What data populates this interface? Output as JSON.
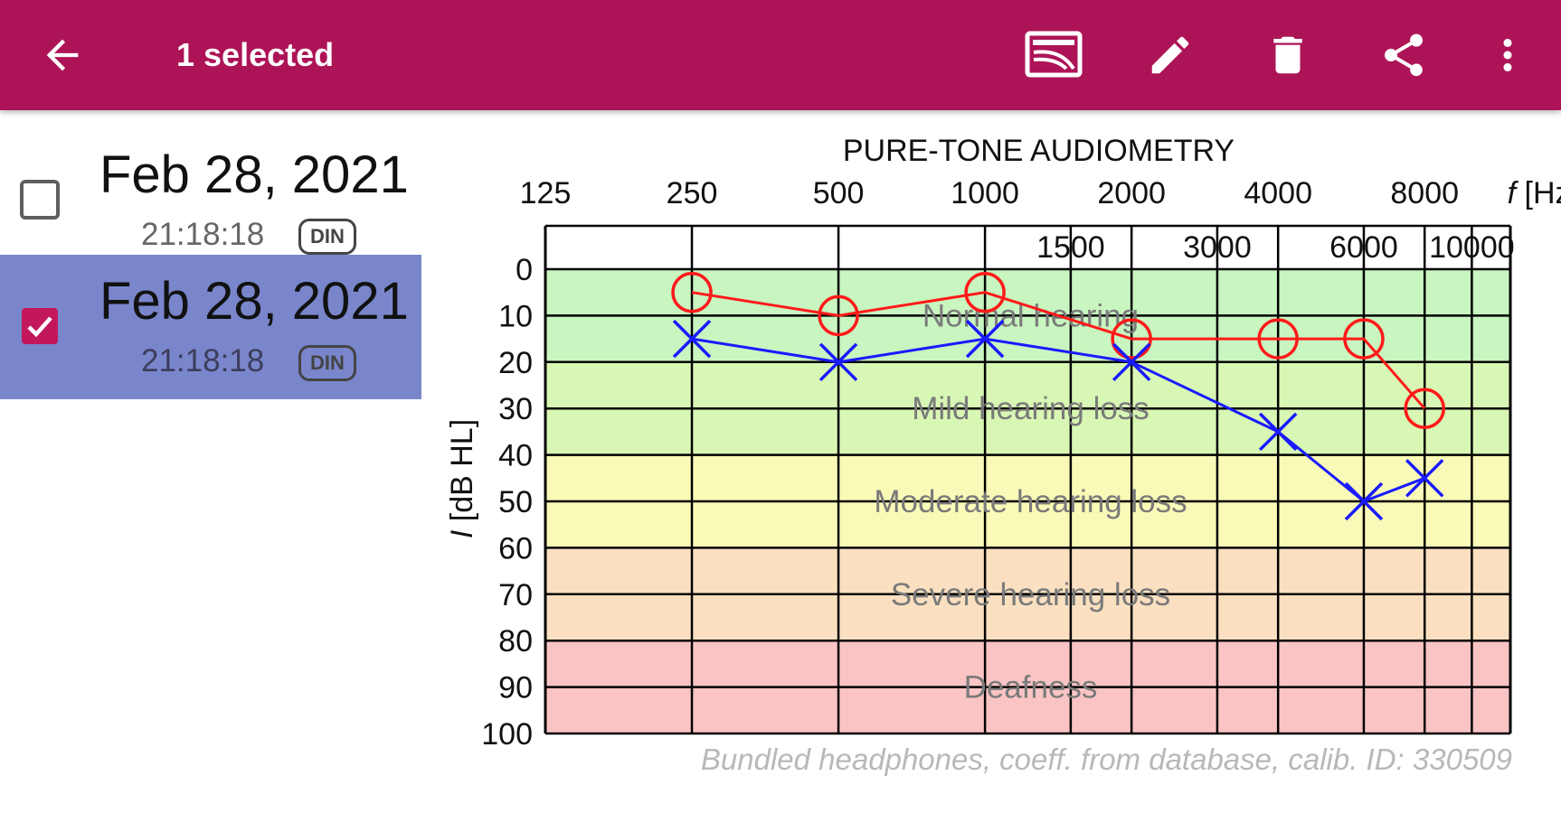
{
  "appbar": {
    "title": "1 selected",
    "background": "#ad1457",
    "icons": [
      "arrow-back-icon",
      "cast-icon",
      "edit-pencil-icon",
      "delete-trash-icon",
      "share-icon",
      "more-vert-icon"
    ]
  },
  "list": {
    "items": [
      {
        "date": "Feb 28, 2021",
        "time": "21:18:18",
        "badge": "DIN",
        "checked": false
      },
      {
        "date": "Feb 28, 2021",
        "time": "21:18:18",
        "badge": "DIN",
        "checked": true
      }
    ],
    "selected_color": "#7986cb",
    "check_color": "#c2185b"
  },
  "chart_data": {
    "type": "line",
    "title": "PURE-TONE AUDIOMETRY",
    "xlabel_f": "f",
    "xlabel_unit": "[Hz]",
    "ylabel_i": "I",
    "ylabel_unit": "[dB HL]",
    "x_ticks_top": [
      "125",
      "250",
      "500",
      "1000",
      "2000",
      "4000",
      "8000"
    ],
    "x_ticks_mid": [
      "1500",
      "3000",
      "6000",
      "10000"
    ],
    "y_ticks": [
      "0",
      "10",
      "20",
      "30",
      "40",
      "50",
      "60",
      "70",
      "80",
      "90",
      "100"
    ],
    "ylim": [
      0,
      100
    ],
    "y_inverted": true,
    "x_scale": "log2",
    "grid": true,
    "zones": [
      {
        "label": "Normal hearing",
        "from": 0,
        "to": 20,
        "color": "#c8f5c0"
      },
      {
        "label": "Mild hearing loss",
        "from": 20,
        "to": 40,
        "color": "#d8f7b4"
      },
      {
        "label": "Moderate hearing loss",
        "from": 40,
        "to": 60,
        "color": "#fafab8"
      },
      {
        "label": "Severe hearing loss",
        "from": 60,
        "to": 80,
        "color": "#fae0c0"
      },
      {
        "label": "Deafness",
        "from": 80,
        "to": 100,
        "color": "#fbc4c4"
      }
    ],
    "series": [
      {
        "marker": "circle",
        "color": "#ff1a1a",
        "x": [
          250,
          500,
          1000,
          2000,
          4000,
          6000,
          8000
        ],
        "y": [
          5,
          10,
          5,
          15,
          15,
          15,
          30
        ]
      },
      {
        "marker": "cross",
        "color": "#1a1aff",
        "x": [
          250,
          500,
          1000,
          2000,
          4000,
          6000,
          8000
        ],
        "y": [
          15,
          20,
          15,
          20,
          35,
          50,
          45
        ]
      }
    ],
    "footnote": "Bundled headphones, coeff. from database, calib. ID: 330509"
  }
}
